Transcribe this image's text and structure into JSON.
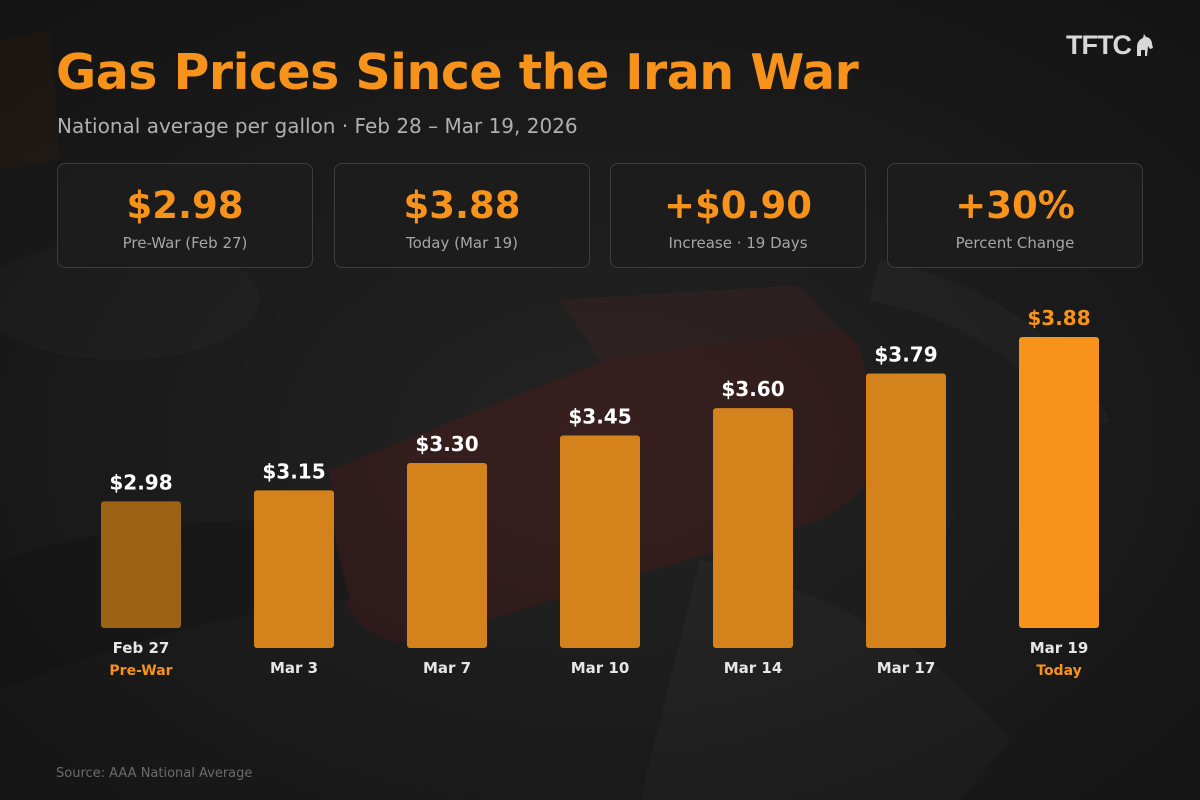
{
  "header": {
    "title": "Gas Prices Since the Iran War",
    "subtitle": "National average per gallon · Feb 28 – Mar 19, 2026",
    "brand": "TFTC",
    "brand_icon": "horse-icon"
  },
  "stats": [
    {
      "value": "$2.98",
      "label": "Pre-War (Feb 27)"
    },
    {
      "value": "$3.88",
      "label": "Today (Mar 19)"
    },
    {
      "value": "+$0.90",
      "label": "Increase · 19 Days"
    },
    {
      "value": "+30%",
      "label": "Percent Change"
    }
  ],
  "chart_data": {
    "type": "bar",
    "categories": [
      "Feb 27",
      "Mar 3",
      "Mar 7",
      "Mar 10",
      "Mar 14",
      "Mar 17",
      "Mar 19"
    ],
    "values": [
      2.98,
      3.15,
      3.3,
      3.45,
      3.6,
      3.79,
      3.88
    ],
    "value_labels": [
      "$2.98",
      "$3.15",
      "$3.30",
      "$3.45",
      "$3.60",
      "$3.79",
      "$3.88"
    ],
    "sublabels": [
      "Pre-War",
      "",
      "",
      "",
      "",
      "",
      "Today"
    ],
    "title": "",
    "xlabel": "",
    "ylabel": "",
    "colors": {
      "pre_war": "#9c6316",
      "middle": "#d4821c",
      "today": "#f7931a",
      "value_label": "#ffffff",
      "today_value_label": "#f7931a",
      "accent": "#f7931a"
    }
  },
  "footer": {
    "source": "Source: AAA National Average"
  }
}
